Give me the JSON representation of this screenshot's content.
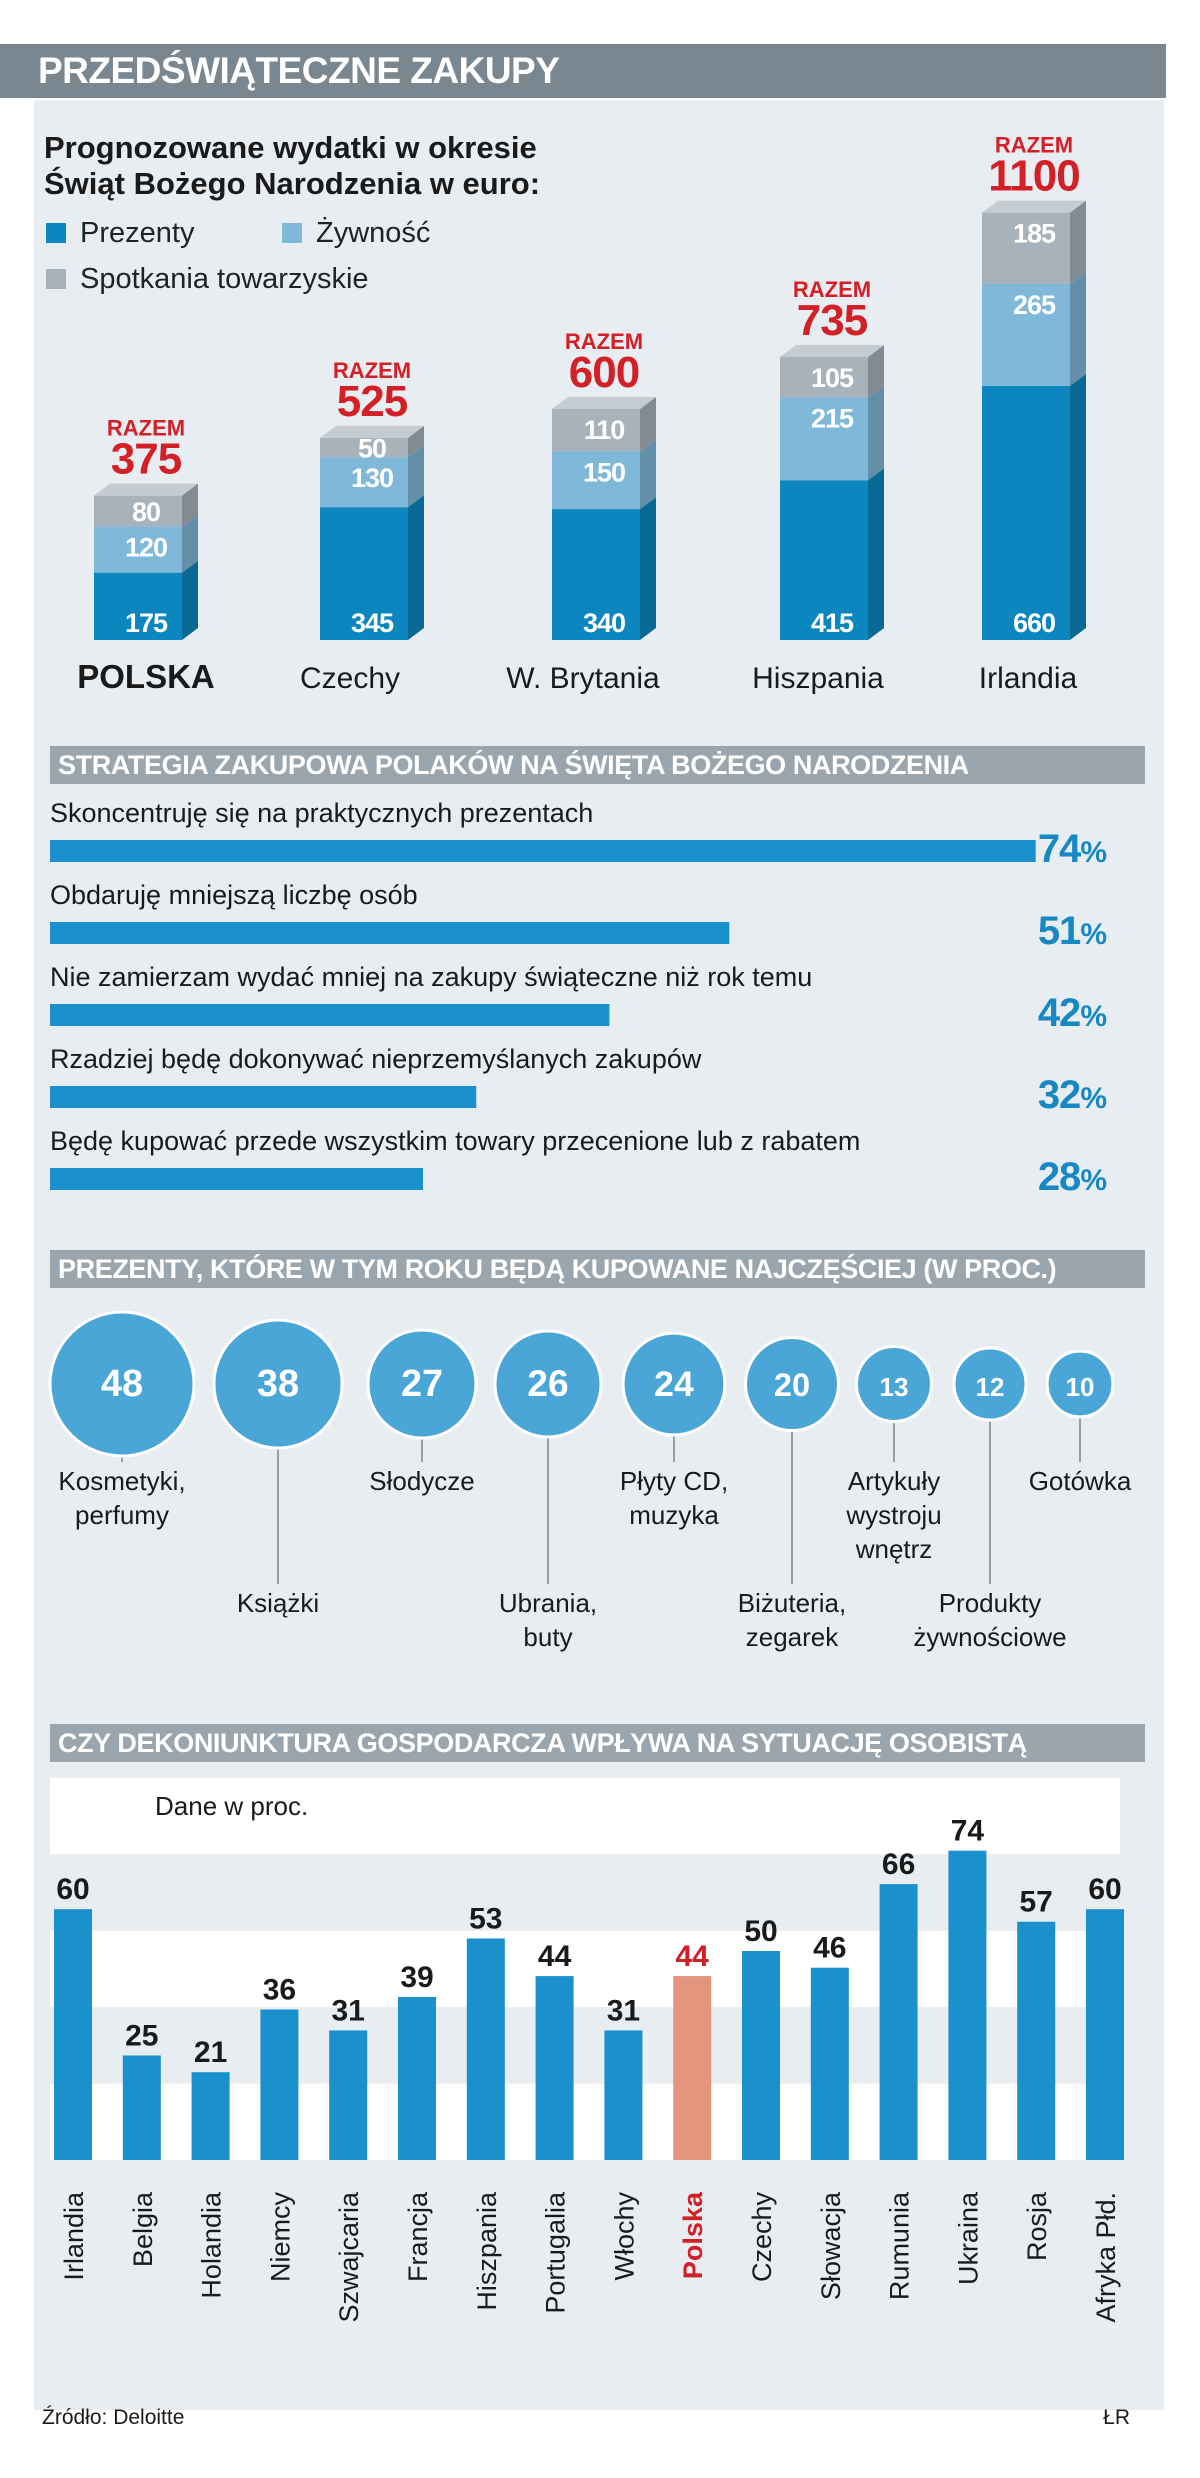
{
  "title": "PRZEDŚWIĄTECZNE ZAKUPY",
  "colors": {
    "gifts": "#0c86bf",
    "food": "#7fb8d8",
    "social": "#a7b2ba",
    "accent": "#d32027",
    "polska_bar": "#e3957d",
    "bar": "#1a90cc",
    "circle": "#4aa6d6"
  },
  "chart_data": [
    {
      "type": "bar",
      "stacked": true,
      "title": "Prognozowane wydatki w okresie\nŚwiąt Bożego Narodzenia w euro:",
      "total_label": "RAZEM",
      "categories": [
        "POLSKA",
        "Czechy",
        "W. Brytania",
        "Hiszpania",
        "Irlandia"
      ],
      "series": [
        {
          "name": "Prezenty",
          "values": [
            175,
            345,
            340,
            415,
            660
          ]
        },
        {
          "name": "Żywność",
          "values": [
            120,
            130,
            150,
            215,
            265
          ]
        },
        {
          "name": "Spotkania towarzyskie",
          "values": [
            80,
            50,
            110,
            105,
            185
          ]
        }
      ],
      "totals": [
        375,
        525,
        600,
        735,
        1100
      ]
    },
    {
      "type": "bar",
      "orientation": "horizontal",
      "title": "STRATEGIA ZAKUPOWA POLAKÓW NA ŚWIĘTA BOŻEGO NARODZENIA",
      "unit": "%",
      "categories": [
        "Skoncentruję się na praktycznych prezentach",
        "Obdaruję mniejszą liczbę osób",
        "Nie zamierzam wydać mniej na zakupy świąteczne niż rok temu",
        "Rzadziej będę dokonywać nieprzemyślanych zakupów",
        "Będę kupować przede wszystkim towary przecenione lub z rabatem"
      ],
      "values": [
        74,
        51,
        42,
        32,
        28
      ],
      "xlim": [
        0,
        100
      ]
    },
    {
      "type": "scatter",
      "style": "bubble",
      "title": "PREZENTY, KTÓRE W TYM ROKU BĘDĄ KUPOWANE NAJCZĘŚCIEJ (W PROC.)",
      "categories": [
        [
          "Kosmetyki,",
          "perfumy"
        ],
        [
          "Książki"
        ],
        [
          "Słodycze"
        ],
        [
          "Ubrania,",
          "buty"
        ],
        [
          "Płyty CD,",
          "muzyka"
        ],
        [
          "Biżuteria,",
          "zegarek"
        ],
        [
          "Artykuły",
          "wystroju",
          "wnętrz"
        ],
        [
          "Produkty",
          "żywnościowe"
        ],
        [
          "Gotówka"
        ]
      ],
      "values": [
        48,
        38,
        27,
        26,
        24,
        20,
        13,
        12,
        10
      ]
    },
    {
      "type": "bar",
      "title": "CZY DEKONIUNKTURA GOSPODARCZA WPŁYWA NA SYTUACJĘ OSOBISTĄ",
      "note": "Dane w proc.",
      "categories": [
        "Irlandia",
        "Belgia",
        "Holandia",
        "Niemcy",
        "Szwajcaria",
        "Francja",
        "Hiszpania",
        "Portugalia",
        "Włochy",
        "Polska",
        "Czechy",
        "Słowacja",
        "Rumunia",
        "Ukraina",
        "Rosja",
        "Afryka Płd."
      ],
      "values": [
        60,
        25,
        21,
        36,
        31,
        39,
        53,
        44,
        31,
        44,
        50,
        46,
        66,
        74,
        57,
        60
      ],
      "highlight": "Polska",
      "ylim": [
        0,
        80
      ],
      "grid": "horizontal bands"
    }
  ],
  "source": "Źródło: Deloitte",
  "author": "ŁR"
}
